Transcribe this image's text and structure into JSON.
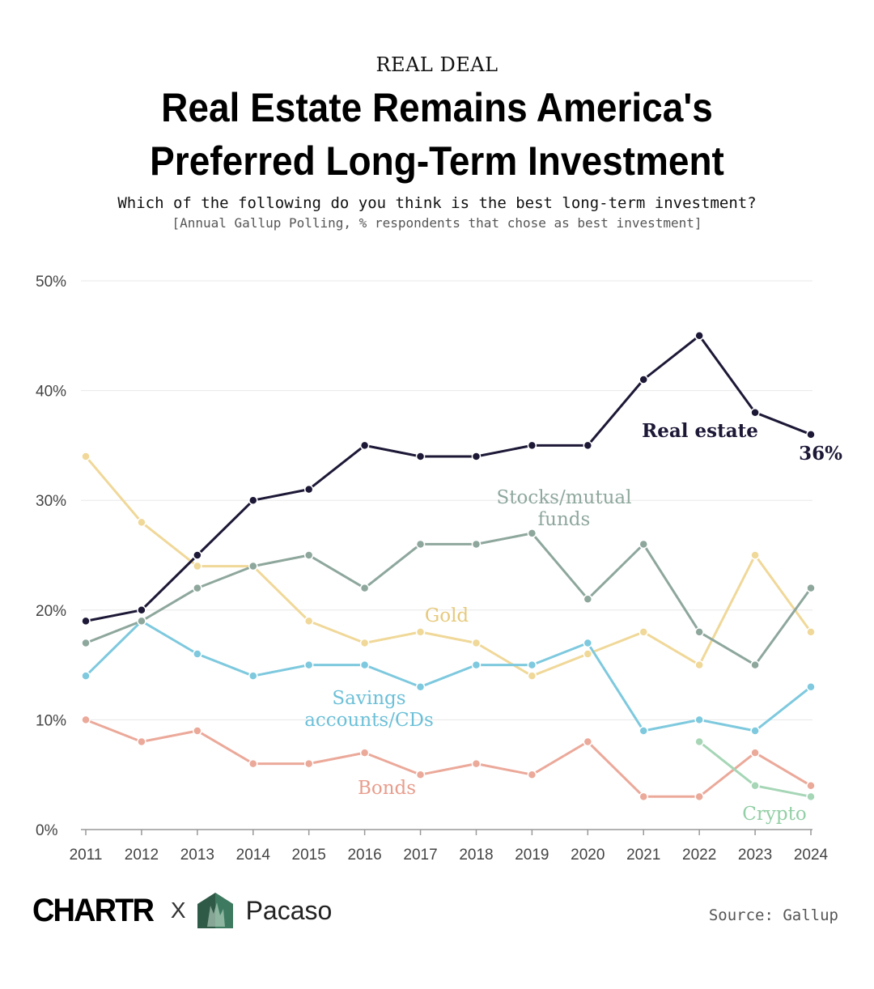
{
  "header": {
    "kicker": "REAL DEAL",
    "title_line1": "Real Estate Remains America's",
    "title_line2": "Preferred Long-Term Investment",
    "subtitle": "Which of the following do you think is the best long-term investment?",
    "note": "[Annual Gallup Polling, % respondents that chose as best investment]"
  },
  "chart_data": {
    "type": "line",
    "x": [
      2011,
      2012,
      2013,
      2014,
      2015,
      2016,
      2017,
      2018,
      2019,
      2020,
      2021,
      2022,
      2023,
      2024
    ],
    "ylim": [
      0,
      50
    ],
    "yticks": [
      0,
      10,
      20,
      30,
      40,
      50
    ],
    "ytick_labels": [
      "0%",
      "10%",
      "20%",
      "30%",
      "40%",
      "50%"
    ],
    "grid": true,
    "series": [
      {
        "name": "Gold",
        "color": "#f0d899",
        "values": [
          34,
          28,
          24,
          24,
          19,
          17,
          18,
          17,
          14,
          16,
          18,
          15,
          25,
          18
        ]
      },
      {
        "name": "Bonds",
        "color": "#eba99a",
        "values": [
          10,
          8,
          9,
          6,
          6,
          7,
          5,
          6,
          5,
          8,
          3,
          3,
          7,
          4
        ]
      },
      {
        "name": "Crypto",
        "color": "#a6d6b6",
        "values": [
          null,
          null,
          null,
          null,
          null,
          null,
          null,
          null,
          null,
          null,
          null,
          8,
          4,
          3
        ]
      },
      {
        "name": "Savings accounts/CDs",
        "color": "#7ec9de",
        "values": [
          14,
          19,
          16,
          14,
          15,
          15,
          13,
          15,
          15,
          17,
          9,
          10,
          9,
          13
        ]
      },
      {
        "name": "Stocks/mutual funds",
        "color": "#8ea79d",
        "values": [
          17,
          19,
          22,
          24,
          25,
          22,
          26,
          26,
          27,
          21,
          26,
          18,
          15,
          22
        ]
      },
      {
        "name": "Real estate",
        "color": "#1c1836",
        "values": [
          19,
          20,
          25,
          30,
          31,
          35,
          34,
          34,
          35,
          35,
          41,
          45,
          38,
          36
        ]
      }
    ],
    "labels": {
      "real_estate": "Real estate",
      "real_estate_last": "36%",
      "stocks_line1": "Stocks/mutual",
      "stocks_line2": "funds",
      "gold": "Gold",
      "savings_line1": "Savings",
      "savings_line2": "accounts/CDs",
      "bonds": "Bonds",
      "crypto": "Crypto"
    }
  },
  "footer": {
    "brand_chartr": "CHARTR",
    "brand_times": "X",
    "brand_pacaso": "Pacaso",
    "source": "Source: Gallup"
  }
}
